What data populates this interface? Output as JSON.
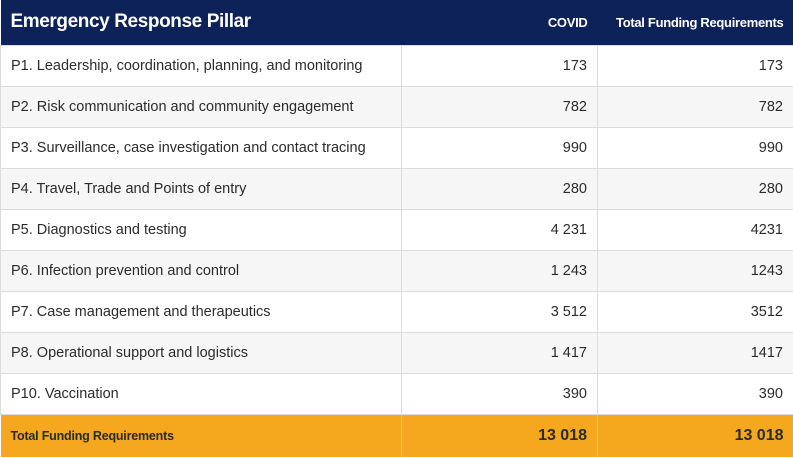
{
  "table": {
    "headers": {
      "pillar": "Emergency Response Pillar",
      "covid": "COVID",
      "total": "Total Funding Requirements"
    },
    "rows": [
      {
        "pillar": "P1. Leadership, coordination, planning, and monitoring",
        "covid": "173",
        "total": "173"
      },
      {
        "pillar": "P2. Risk communication and community engagement",
        "covid": "782",
        "total": "782"
      },
      {
        "pillar": "P3. Surveillance, case investigation and contact tracing",
        "covid": "990",
        "total": "990"
      },
      {
        "pillar": "P4. Travel, Trade and Points of entry",
        "covid": "280",
        "total": "280"
      },
      {
        "pillar": "P5. Diagnostics and testing",
        "covid": "4 231",
        "total": "4231"
      },
      {
        "pillar": "P6. Infection prevention and control",
        "covid": "1 243",
        "total": "1243"
      },
      {
        "pillar": "P7. Case management and therapeutics",
        "covid": "3 512",
        "total": "3512"
      },
      {
        "pillar": "P8. Operational support and logistics",
        "covid": "1 417",
        "total": "1417"
      },
      {
        "pillar": "P10. Vaccination",
        "covid": "390",
        "total": "390"
      }
    ],
    "footer": {
      "label": "Total Funding Requirements",
      "covid": "13 018",
      "total": "13 018"
    }
  },
  "colors": {
    "header_bg": "#0d2258",
    "footer_bg": "#f5a81e",
    "row_alt_bg": "#f6f6f6"
  }
}
